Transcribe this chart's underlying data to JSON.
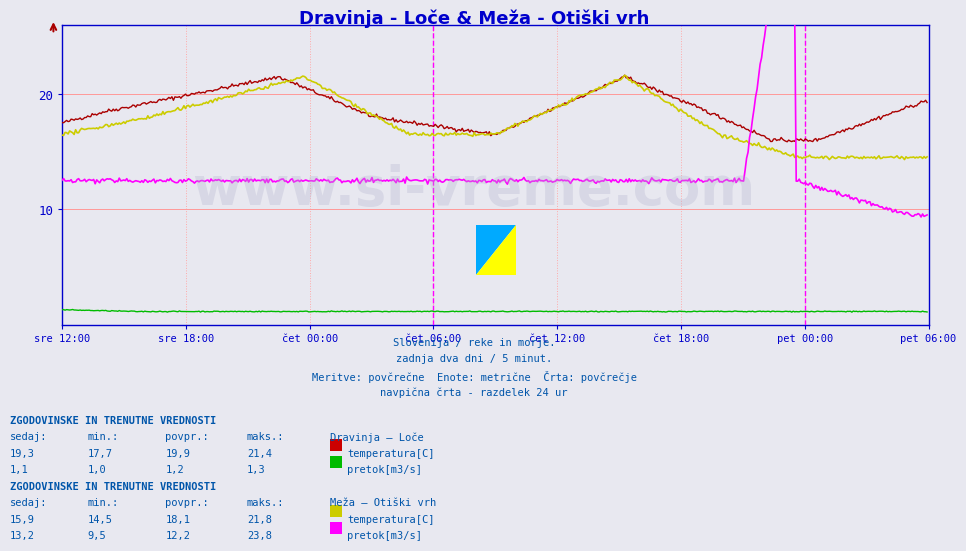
{
  "title": "Dravinja - Loče & Meža - Otiški vrh",
  "title_color": "#0000cc",
  "bg_color": "#e8e8f0",
  "plot_bg_color": "#e8e8f0",
  "ylim": [
    0,
    26
  ],
  "x_tick_labels": [
    "sre 12:00",
    "sre 18:00",
    "čet 00:00",
    "čet 06:00",
    "čet 12:00",
    "čet 18:00",
    "pet 00:00",
    "pet 06:00"
  ],
  "n_points": 576,
  "info_lines": [
    "Slovenija / reke in morje.",
    "zadnja dva dni / 5 minut.",
    "Meritve: povčrečne  Enote: metrične  Črta: povčrečje",
    "navpična črta - razdelek 24 ur"
  ],
  "section1_header": "ZGODOVINSKE IN TRENUTNE VREDNOSTI",
  "section1_cols": [
    "sedaj:",
    "min.:",
    "povpr.:",
    "maks.:"
  ],
  "section1_station": "Dravinja – Loče",
  "section1_row1": [
    "19,3",
    "17,7",
    "19,9",
    "21,4"
  ],
  "section1_row1_label": "temperatura[C]",
  "section1_row1_color": "#cc0000",
  "section1_row2": [
    "1,1",
    "1,0",
    "1,2",
    "1,3"
  ],
  "section1_row2_label": "pretok[m3/s]",
  "section1_row2_color": "#00bb00",
  "section2_header": "ZGODOVINSKE IN TRENUTNE VREDNOSTI",
  "section2_cols": [
    "sedaj:",
    "min.:",
    "povpr.:",
    "maks.:"
  ],
  "section2_station": "Meža – Otiški vrh",
  "section2_row1": [
    "15,9",
    "14,5",
    "18,1",
    "21,8"
  ],
  "section2_row1_label": "temperatura[C]",
  "section2_row1_color": "#cccc00",
  "section2_row2": [
    "13,2",
    "9,5",
    "12,2",
    "23,8"
  ],
  "section2_row2_label": "pretok[m3/s]",
  "section2_row2_color": "#ff00ff",
  "watermark": "www.si-vreme.com",
  "vline_color": "#ff00ff",
  "hgrid_color": "#ff9999",
  "vgrid_color": "#ffaaaa",
  "axis_color": "#0000cc",
  "text_color": "#0055aa"
}
